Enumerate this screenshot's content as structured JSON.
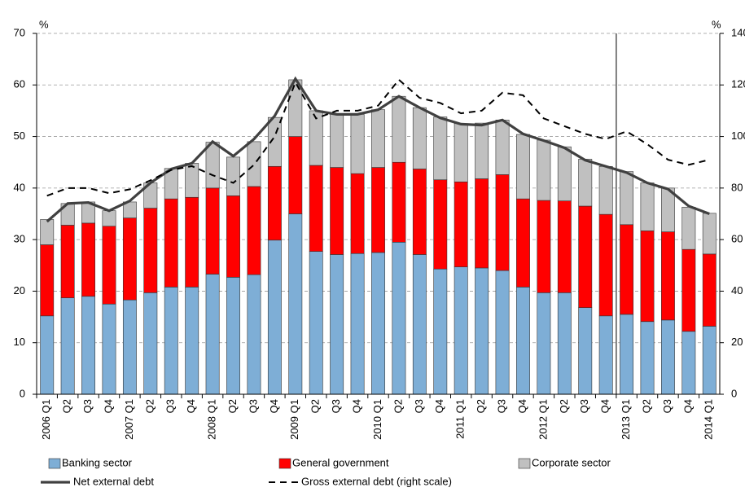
{
  "chart_data": {
    "type": "bar",
    "y_label": "%",
    "y2_label": "%",
    "categories": [
      "2006 Q1",
      "Q2",
      "Q3",
      "Q4",
      "2007 Q1",
      "Q2",
      "Q3",
      "Q4",
      "2008 Q1",
      "Q2",
      "Q3",
      "Q4",
      "2009 Q1",
      "Q2",
      "Q3",
      "Q4",
      "2010 Q1",
      "Q2",
      "Q3",
      "Q4",
      "2011 Q1",
      "Q2",
      "Q3",
      "Q4",
      "2012 Q1",
      "Q2",
      "Q3",
      "Q4",
      "2013 Q1",
      "Q2",
      "Q3",
      "Q4",
      "2014 Q1"
    ],
    "ylim": [
      0,
      70
    ],
    "yticks": [
      0,
      10,
      20,
      30,
      40,
      50,
      60,
      70
    ],
    "y2lim": [
      0,
      140
    ],
    "y2ticks": [
      0,
      20,
      40,
      60,
      80,
      100,
      120,
      140
    ],
    "grid": true,
    "series": [
      {
        "name": "Banking sector",
        "type": "bar",
        "color": "#7eaed6",
        "values": [
          15.2,
          18.7,
          19,
          17.5,
          18.3,
          19.7,
          20.8,
          20.8,
          23.3,
          22.7,
          23.2,
          29.9,
          35,
          27.7,
          27.1,
          27.3,
          27.5,
          29.5,
          27.1,
          24.3,
          24.7,
          24.5,
          24,
          20.8,
          19.7,
          19.7,
          16.8,
          15.2,
          15.5,
          14.1,
          14.4,
          12.2,
          13.2
        ]
      },
      {
        "name": "General government",
        "type": "bar",
        "color": "#ff0000",
        "values": [
          13.8,
          14.1,
          14.2,
          15.1,
          15.9,
          16.4,
          17.1,
          17.4,
          16.7,
          15.8,
          17.1,
          14.3,
          15,
          16.7,
          16.9,
          15.5,
          16.5,
          15.5,
          16.6,
          17.3,
          16.5,
          17.3,
          18.6,
          17.1,
          17.9,
          17.8,
          19.7,
          19.7,
          17.4,
          17.6,
          17.1,
          15.9,
          14
        ]
      },
      {
        "name": "Corporate sector",
        "type": "bar",
        "color": "#c0c0c0",
        "values": [
          4.9,
          4.2,
          4.1,
          3,
          3.1,
          4.9,
          5.9,
          6.6,
          8.9,
          7.5,
          8.7,
          9.5,
          11,
          10.6,
          10.4,
          11.5,
          11.2,
          12.8,
          11.9,
          12.2,
          11.3,
          10.8,
          10.6,
          12.5,
          11.7,
          10.5,
          9.1,
          9.3,
          10.3,
          9.3,
          8.5,
          8.2,
          7.9
        ]
      },
      {
        "name": "Net external debt",
        "type": "line",
        "color": "#404040",
        "values": [
          33.5,
          37,
          37.2,
          35.6,
          37.5,
          41,
          43.7,
          44.8,
          49,
          46.2,
          49.5,
          54,
          61.2,
          55,
          54.3,
          54.3,
          55.2,
          57.8,
          55.6,
          53.6,
          52.4,
          52.2,
          53.2,
          50.5,
          49.2,
          47.8,
          45.4,
          44.2,
          43,
          41,
          39.8,
          36.5,
          35
        ]
      },
      {
        "name": "Gross external debt (right scale)",
        "type": "line",
        "style": "dashed",
        "axis": "y2",
        "color": "#000000",
        "values": [
          77,
          80,
          80,
          78,
          79.5,
          83,
          87,
          88.5,
          85,
          82,
          89,
          100,
          121,
          107,
          110,
          110,
          112,
          122,
          115,
          113,
          109,
          110,
          117,
          116,
          107,
          104,
          101,
          99,
          102,
          97,
          91,
          89,
          91
        ]
      }
    ]
  }
}
